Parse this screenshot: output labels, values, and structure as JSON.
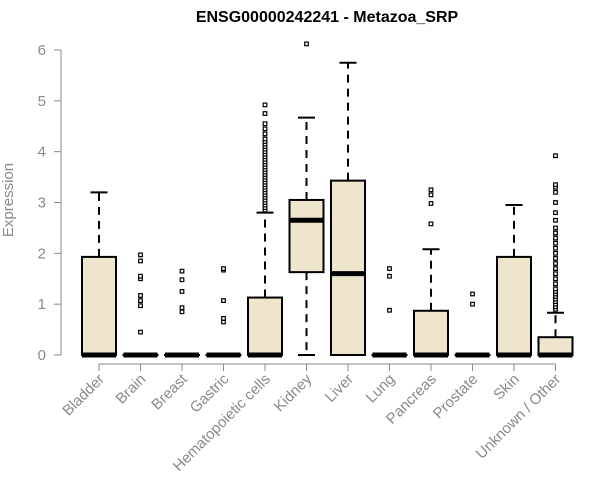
{
  "chart_data": {
    "type": "box",
    "title": "ENSG00000242241 - Metazoa_SRP",
    "xlabel": "",
    "ylabel": "Expression",
    "ylim": [
      0,
      6
    ],
    "yticks": [
      "0",
      "1",
      "2",
      "3",
      "4",
      "5",
      "6"
    ],
    "grid": false,
    "box_fill": "#ede6cd",
    "box_stroke": "#000000",
    "axis_color": "#8a8a8a",
    "categories": [
      "Bladder",
      "Brain",
      "Breast",
      "Gastric",
      "Hematopoietic cells",
      "Kidney",
      "Liver",
      "Lung",
      "Pancreas",
      "Prostate",
      "Skin",
      "Unknown / Other"
    ],
    "boxes": [
      {
        "q1": 0,
        "median": 0,
        "q3": 1.93,
        "whisker_low": 0,
        "whisker_high": 3.2,
        "outliers": []
      },
      {
        "q1": 0,
        "median": 0,
        "q3": 0,
        "whisker_low": 0,
        "whisker_high": 0,
        "outliers": [
          0.45,
          0.97,
          1.07,
          1.17,
          1.5,
          1.55,
          1.85,
          1.97
        ]
      },
      {
        "q1": 0,
        "median": 0,
        "q3": 0,
        "whisker_low": 0,
        "whisker_high": 0,
        "outliers": [
          0.85,
          0.93,
          1.25,
          1.48,
          1.65
        ]
      },
      {
        "q1": 0,
        "median": 0,
        "q3": 0,
        "whisker_low": 0,
        "whisker_high": 0,
        "outliers": [
          0.65,
          0.72,
          1.07,
          1.67,
          1.7
        ]
      },
      {
        "q1": 0,
        "median": 0,
        "q3": 1.13,
        "whisker_low": 0,
        "whisker_high": 2.8,
        "outliers": [
          2.85,
          2.9,
          2.95,
          3.0,
          3.05,
          3.1,
          3.15,
          3.2,
          3.25,
          3.3,
          3.35,
          3.4,
          3.45,
          3.5,
          3.55,
          3.6,
          3.65,
          3.7,
          3.75,
          3.8,
          3.85,
          3.9,
          3.95,
          4.0,
          4.05,
          4.1,
          4.15,
          4.2,
          4.25,
          4.35,
          4.45,
          4.55,
          4.75,
          4.92
        ]
      },
      {
        "q1": 1.63,
        "median": 2.65,
        "q3": 3.05,
        "whisker_low": 0,
        "whisker_high": 4.67,
        "outliers": [
          6.12
        ]
      },
      {
        "q1": 0,
        "median": 1.6,
        "q3": 3.43,
        "whisker_low": 0,
        "whisker_high": 5.75,
        "outliers": []
      },
      {
        "q1": 0,
        "median": 0,
        "q3": 0,
        "whisker_low": 0,
        "whisker_high": 0,
        "outliers": [
          0.88,
          1.55,
          1.7
        ]
      },
      {
        "q1": 0,
        "median": 0,
        "q3": 0.87,
        "whisker_low": 0,
        "whisker_high": 2.08,
        "outliers": [
          2.58,
          2.98,
          3.15,
          3.25
        ]
      },
      {
        "q1": 0,
        "median": 0,
        "q3": 0,
        "whisker_low": 0,
        "whisker_high": 0,
        "outliers": [
          1.0,
          1.2
        ]
      },
      {
        "q1": 0,
        "median": 0,
        "q3": 1.93,
        "whisker_low": 0,
        "whisker_high": 2.95,
        "outliers": []
      },
      {
        "q1": 0,
        "median": 0,
        "q3": 0.35,
        "whisker_low": 0,
        "whisker_high": 0.83,
        "outliers": [
          0.9,
          0.95,
          1.0,
          1.05,
          1.1,
          1.15,
          1.2,
          1.25,
          1.3,
          1.4,
          1.5,
          1.6,
          1.7,
          1.8,
          1.9,
          2.0,
          2.1,
          2.2,
          2.3,
          2.4,
          2.5,
          2.65,
          2.8,
          3.0,
          3.2,
          3.3,
          3.35,
          3.92
        ]
      }
    ]
  }
}
